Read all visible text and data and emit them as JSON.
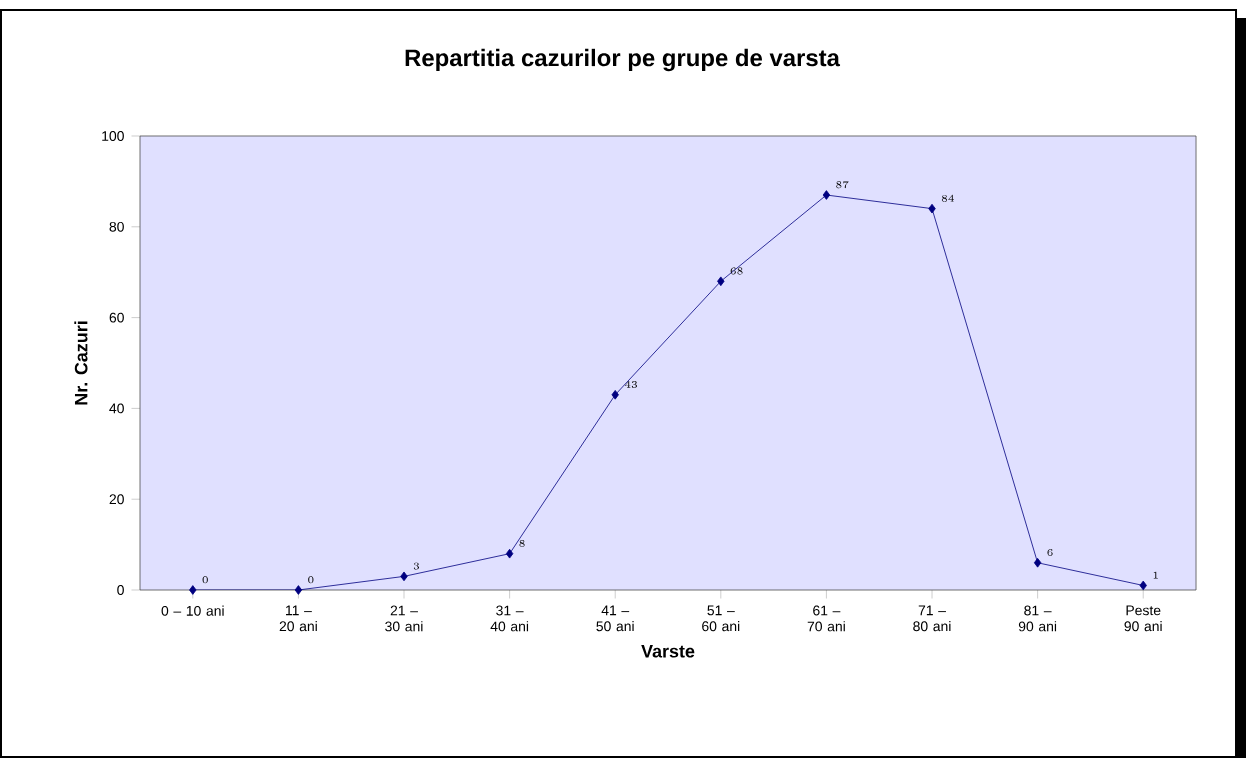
{
  "chart_data": {
    "type": "line",
    "title": "Repartitia cazurilor pe grupe de varsta",
    "xlabel": "Varste",
    "ylabel": "Nr. Cazuri",
    "categories": [
      "0 – 10 ani",
      "11 – 20 ani",
      "21 – 30 ani",
      "31 – 40 ani",
      "41 – 50 ani",
      "51 – 60 ani",
      "61 – 70 ani",
      "71 – 80 ani",
      "81 – 90 ani",
      "Peste 90 ani"
    ],
    "values": [
      0,
      0,
      3,
      8,
      43,
      68,
      87,
      84,
      6,
      1
    ],
    "color": "#000080",
    "marker": "diamond",
    "data_labels": true,
    "ylim": [
      0,
      100
    ],
    "yticks": [
      0,
      20,
      40,
      60,
      80,
      100
    ],
    "grid": false
  }
}
